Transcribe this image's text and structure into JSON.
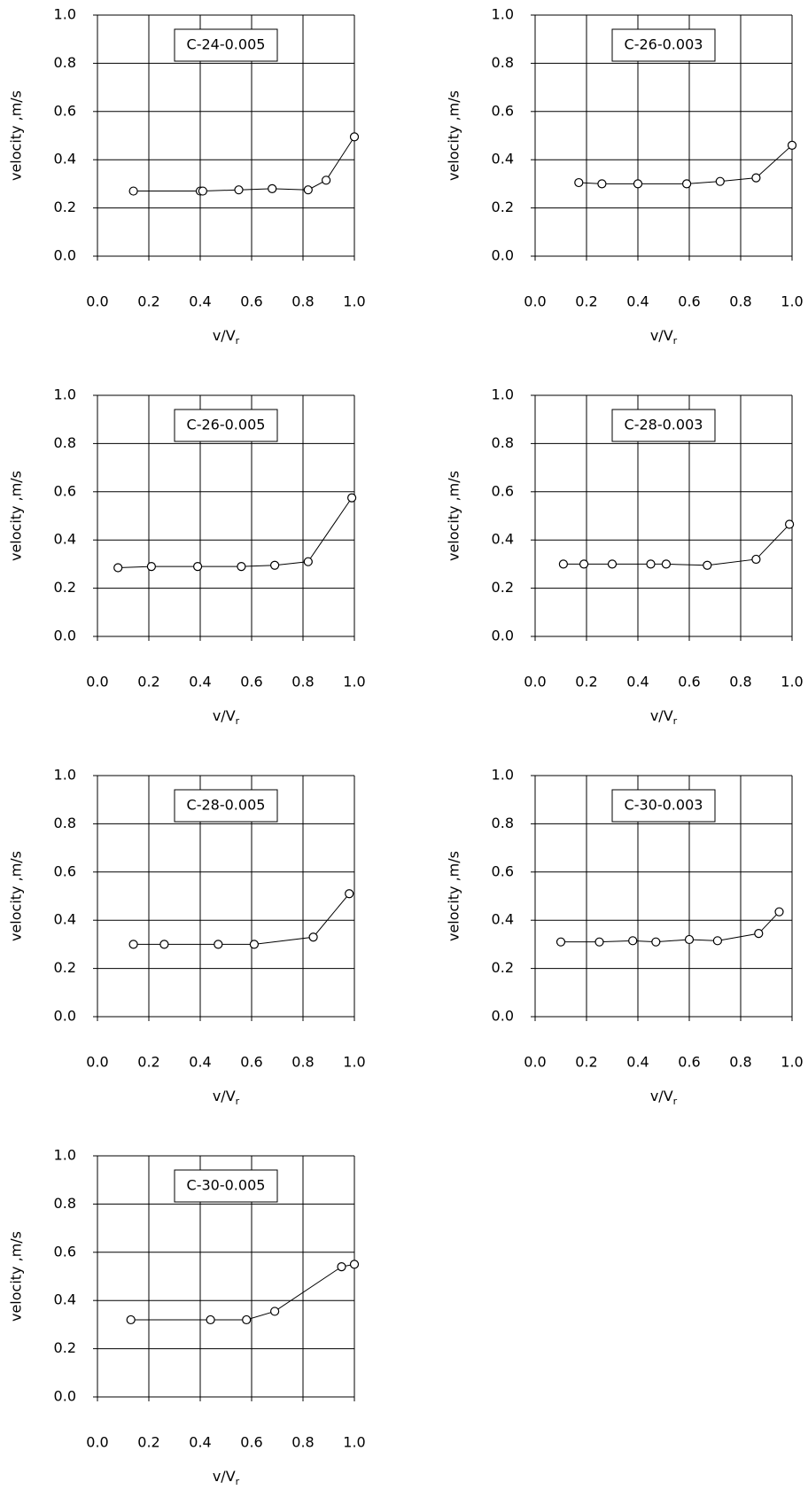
{
  "chart_data": [
    {
      "type": "line",
      "title": "C-24-0.005",
      "y_label": "velocity ,m/s",
      "x_label": {
        "text": "v/V",
        "subscript": "r"
      },
      "color": "#000000",
      "x": [
        0.14,
        0.4,
        0.41,
        0.55,
        0.68,
        0.82,
        0.89,
        1.0
      ],
      "values": [
        0.27,
        0.27,
        0.27,
        0.275,
        0.28,
        0.275,
        0.315,
        0.495
      ],
      "xlim": [
        0,
        1
      ],
      "ylim": [
        0,
        1
      ],
      "grid": true,
      "xticks": [
        {
          "value": 0,
          "label": "0.0"
        },
        0.2,
        0.4,
        0.6,
        0.8,
        {
          "value": 1,
          "label": "1.0"
        }
      ],
      "yticks": [
        {
          "value": 0,
          "label": "0.0"
        },
        0.2,
        0.4,
        0.6,
        0.8,
        {
          "value": 1,
          "label": "1.0"
        }
      ]
    },
    {
      "type": "line",
      "title": "C-26-0.003",
      "y_label": "velocity ,m/s",
      "x_label": {
        "text": "v/V",
        "subscript": "r"
      },
      "color": "#000000",
      "x": [
        0.17,
        0.26,
        0.4,
        0.59,
        0.72,
        0.86,
        1.0
      ],
      "values": [
        0.305,
        0.3,
        0.3,
        0.3,
        0.31,
        0.325,
        0.46
      ],
      "xlim": [
        0,
        1
      ],
      "ylim": [
        0,
        1
      ],
      "grid": true,
      "xticks": [
        {
          "value": 0,
          "label": "0.0"
        },
        0.2,
        0.4,
        0.6,
        0.8,
        {
          "value": 1,
          "label": "1.0"
        }
      ],
      "yticks": [
        {
          "value": 0,
          "label": "0.0"
        },
        0.2,
        0.4,
        0.6,
        0.8,
        {
          "value": 1,
          "label": "1.0"
        }
      ]
    },
    {
      "type": "line",
      "title": "C-26-0.005",
      "y_label": "velocity ,m/s",
      "x_label": {
        "text": "v/V",
        "subscript": "r"
      },
      "color": "#000000",
      "x": [
        0.08,
        0.21,
        0.39,
        0.56,
        0.69,
        0.82,
        0.99
      ],
      "values": [
        0.285,
        0.29,
        0.29,
        0.29,
        0.295,
        0.31,
        0.575
      ],
      "xlim": [
        0,
        1
      ],
      "ylim": [
        0,
        1
      ],
      "grid": true,
      "xticks": [
        {
          "value": 0,
          "label": "0.0"
        },
        0.2,
        0.4,
        0.6,
        0.8,
        {
          "value": 1,
          "label": "1.0"
        }
      ],
      "yticks": [
        {
          "value": 0,
          "label": "0.0"
        },
        0.2,
        0.4,
        0.6,
        0.8,
        {
          "value": 1,
          "label": "1.0"
        }
      ]
    },
    {
      "type": "line",
      "title": "C-28-0.003",
      "y_label": "velocity ,m/s",
      "x_label": {
        "text": "v/V",
        "subscript": "r"
      },
      "color": "#000000",
      "x": [
        0.11,
        0.19,
        0.3,
        0.45,
        0.51,
        0.67,
        0.86,
        0.99
      ],
      "values": [
        0.3,
        0.3,
        0.3,
        0.3,
        0.3,
        0.295,
        0.32,
        0.465
      ],
      "xlim": [
        0,
        1
      ],
      "ylim": [
        0,
        1
      ],
      "grid": true,
      "xticks": [
        {
          "value": 0,
          "label": "0.0"
        },
        0.2,
        0.4,
        0.6,
        0.8,
        {
          "value": 1,
          "label": "1.0"
        }
      ],
      "yticks": [
        {
          "value": 0,
          "label": "0.0"
        },
        0.2,
        0.4,
        0.6,
        0.8,
        {
          "value": 1,
          "label": "1.0"
        }
      ]
    },
    {
      "type": "line",
      "title": "C-28-0.005",
      "y_label": "velocity ,m/s",
      "x_label": {
        "text": "v/V",
        "subscript": "r"
      },
      "color": "#000000",
      "x": [
        0.14,
        0.26,
        0.47,
        0.61,
        0.84,
        0.98
      ],
      "values": [
        0.3,
        0.3,
        0.3,
        0.3,
        0.33,
        0.51
      ],
      "xlim": [
        0,
        1
      ],
      "ylim": [
        0,
        1
      ],
      "grid": true,
      "xticks": [
        {
          "value": 0,
          "label": "0.0"
        },
        0.2,
        0.4,
        0.6,
        0.8,
        {
          "value": 1,
          "label": "1.0"
        }
      ],
      "yticks": [
        {
          "value": 0,
          "label": "0.0"
        },
        0.2,
        0.4,
        0.6,
        0.8,
        {
          "value": 1,
          "label": "1.0"
        }
      ]
    },
    {
      "type": "line",
      "title": "C-30-0.003",
      "y_label": "velocity ,m/s",
      "x_label": {
        "text": "v/V",
        "subscript": "r"
      },
      "color": "#000000",
      "x": [
        0.1,
        0.25,
        0.38,
        0.47,
        0.6,
        0.71,
        0.87,
        0.95
      ],
      "values": [
        0.31,
        0.31,
        0.315,
        0.31,
        0.32,
        0.315,
        0.345,
        0.435
      ],
      "xlim": [
        0,
        1
      ],
      "ylim": [
        0,
        1
      ],
      "grid": true,
      "xticks": [
        {
          "value": 0,
          "label": "0.0"
        },
        0.2,
        0.4,
        0.6,
        0.8,
        {
          "value": 1,
          "label": "1.0"
        }
      ],
      "yticks": [
        {
          "value": 0,
          "label": "0.0"
        },
        0.2,
        0.4,
        0.6,
        0.8,
        {
          "value": 1,
          "label": "1.0"
        }
      ]
    },
    {
      "type": "line",
      "title": "C-30-0.005",
      "y_label": "velocity ,m/s",
      "x_label": {
        "text": "v/V",
        "subscript": "r"
      },
      "color": "#000000",
      "x": [
        0.13,
        0.44,
        0.58,
        0.69,
        0.95,
        1.0
      ],
      "values": [
        0.32,
        0.32,
        0.32,
        0.355,
        0.54,
        0.55
      ],
      "xlim": [
        0,
        1
      ],
      "ylim": [
        0,
        1
      ],
      "grid": true,
      "xticks": [
        {
          "value": 0,
          "label": "0.0"
        },
        0.2,
        0.4,
        0.6,
        0.8,
        {
          "value": 1,
          "label": "1.0"
        }
      ],
      "yticks": [
        {
          "value": 0,
          "label": "0.0"
        },
        0.2,
        0.4,
        0.6,
        0.8,
        {
          "value": 1,
          "label": "1.0"
        }
      ]
    }
  ]
}
